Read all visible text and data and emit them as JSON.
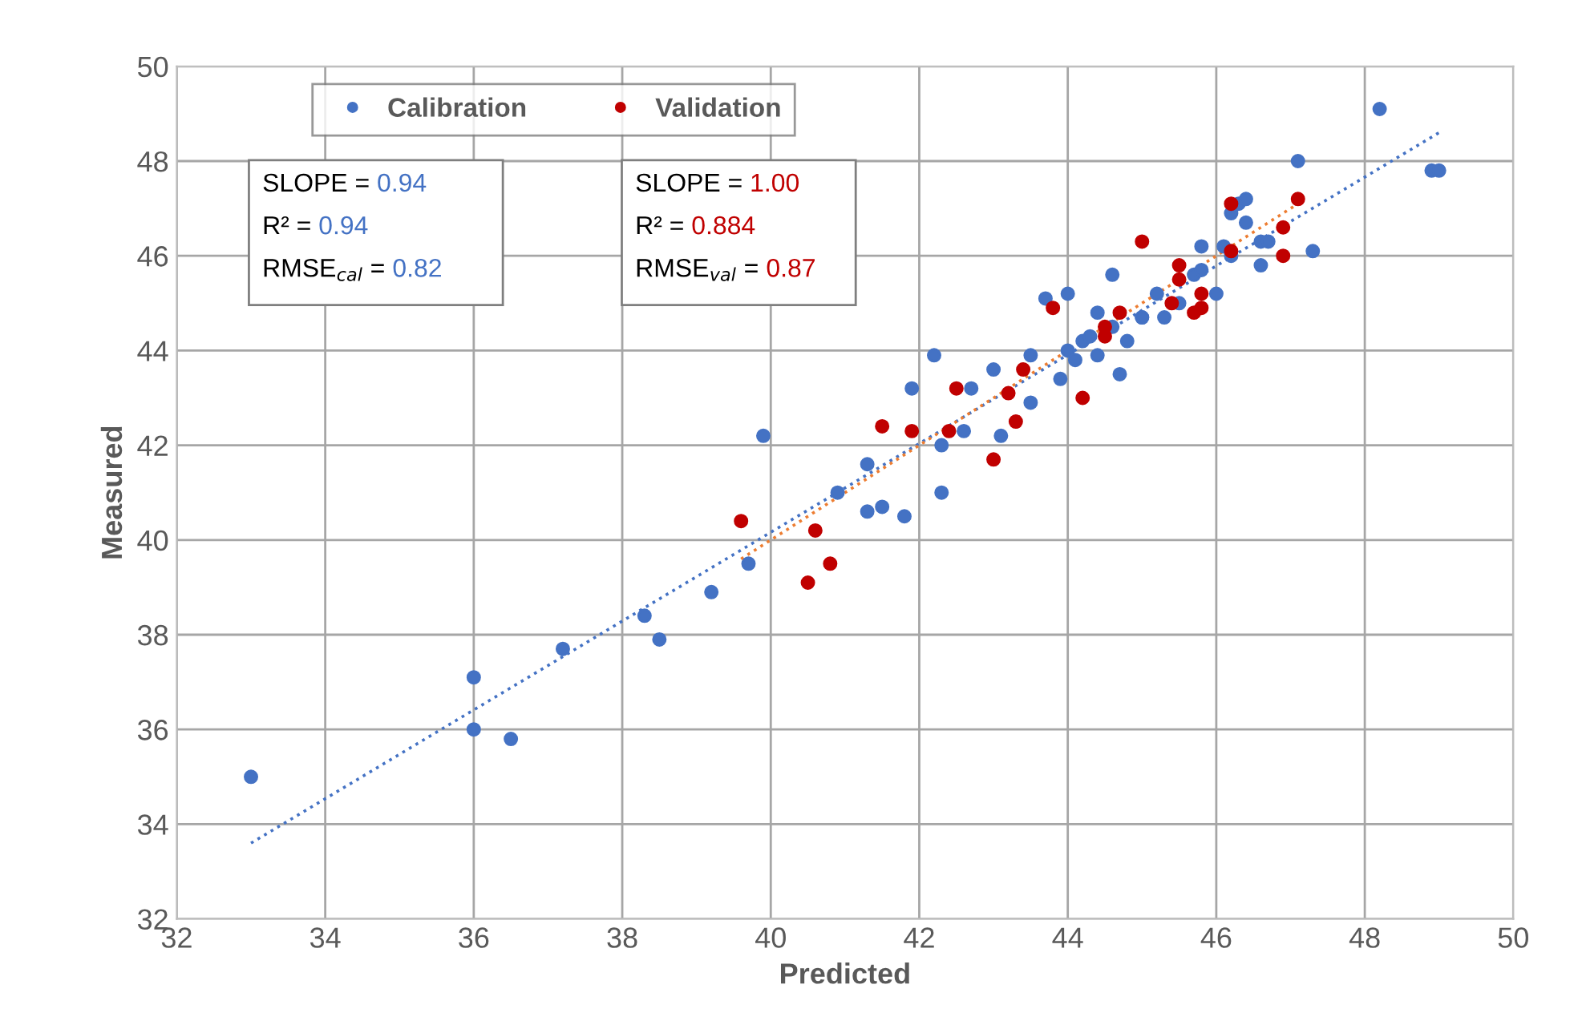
{
  "chart_data": {
    "type": "scatter",
    "xlabel": "Predicted",
    "ylabel": "Measured",
    "xlim": [
      32,
      50
    ],
    "ylim": [
      32,
      50
    ],
    "xticks": [
      32,
      34,
      36,
      38,
      40,
      42,
      44,
      46,
      48,
      50
    ],
    "yticks": [
      32,
      34,
      36,
      38,
      40,
      42,
      44,
      46,
      48,
      50
    ],
    "grid": true,
    "legend": "top",
    "marker": "circle",
    "annotations": [
      "SLOPE = 0.94",
      "R² = 0.94",
      "RMSE$_{cal}$ = 0.82",
      "SLOPE = 1.00",
      "R² = 0.884",
      "RMSE$_{val}$ = 0.87"
    ],
    "series": [
      {
        "name": "Calibration",
        "color": "#4472c4",
        "x": [
          33.0,
          36.0,
          36.0,
          36.5,
          37.2,
          38.3,
          38.5,
          39.2,
          39.7,
          39.9,
          40.9,
          41.3,
          41.3,
          41.5,
          41.8,
          41.9,
          42.2,
          42.3,
          42.3,
          42.6,
          42.7,
          43.0,
          43.1,
          43.5,
          43.5,
          43.7,
          43.9,
          44.0,
          44.0,
          44.1,
          44.2,
          44.3,
          44.4,
          44.4,
          44.6,
          44.6,
          44.7,
          44.8,
          45.0,
          45.0,
          45.2,
          45.3,
          45.5,
          45.7,
          45.8,
          45.8,
          46.0,
          46.1,
          46.2,
          46.2,
          46.3,
          46.4,
          46.4,
          46.6,
          46.6,
          46.7,
          47.1,
          47.3,
          48.2,
          48.9,
          49.0
        ],
        "values": [
          35.0,
          37.1,
          36.0,
          35.8,
          37.7,
          38.4,
          37.9,
          38.9,
          39.5,
          42.2,
          41.0,
          40.6,
          41.6,
          40.7,
          40.5,
          43.2,
          43.9,
          42.0,
          41.0,
          42.3,
          43.2,
          43.6,
          42.2,
          43.9,
          42.9,
          45.1,
          43.4,
          45.2,
          44.0,
          43.8,
          44.2,
          44.3,
          44.8,
          43.9,
          45.6,
          44.5,
          43.5,
          44.2,
          44.7,
          44.7,
          45.2,
          44.7,
          45.0,
          45.6,
          46.2,
          45.7,
          45.2,
          46.2,
          46.0,
          46.9,
          47.1,
          47.2,
          46.7,
          46.3,
          45.8,
          46.3,
          48.0,
          46.1,
          49.1,
          47.8,
          47.8
        ]
      },
      {
        "name": "Validation",
        "color": "#c00000",
        "x": [
          39.6,
          40.5,
          40.6,
          40.8,
          41.5,
          41.9,
          42.4,
          42.5,
          43.0,
          43.2,
          43.3,
          43.4,
          43.8,
          44.2,
          44.5,
          44.5,
          44.7,
          45.0,
          45.4,
          45.5,
          45.5,
          45.7,
          45.8,
          45.8,
          46.2,
          46.2,
          46.9,
          46.9,
          47.1
        ],
        "values": [
          40.4,
          39.1,
          40.2,
          39.5,
          42.4,
          42.3,
          42.3,
          43.2,
          41.7,
          43.1,
          42.5,
          43.6,
          44.9,
          43.0,
          44.3,
          44.5,
          44.8,
          46.3,
          45.0,
          45.8,
          45.5,
          44.8,
          44.9,
          45.2,
          47.1,
          46.1,
          46.6,
          46.0,
          47.2
        ]
      },
      {
        "type": "line",
        "color": "#4472c4",
        "line_style": "dotted",
        "marker": "none",
        "x": [
          33.0,
          49.0
        ],
        "values": [
          33.6,
          48.6
        ]
      },
      {
        "type": "line",
        "color": "#ed7d31",
        "line_style": "dotted",
        "marker": "none",
        "x": [
          39.6,
          47.1
        ],
        "values": [
          39.6,
          47.1
        ]
      }
    ]
  }
}
